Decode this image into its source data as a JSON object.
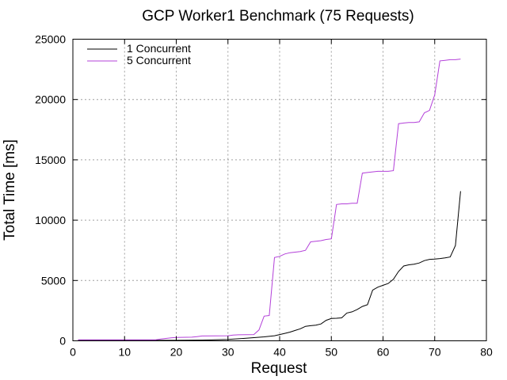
{
  "chart_data": {
    "type": "line",
    "title": "GCP Worker1 Benchmark (75 Requests)",
    "xlabel": "Request",
    "ylabel": "Total Time [ms]",
    "xlim": [
      0,
      80
    ],
    "ylim": [
      0,
      25000
    ],
    "xticks": [
      0,
      10,
      20,
      30,
      40,
      50,
      60,
      70,
      80
    ],
    "yticks": [
      0,
      5000,
      10000,
      15000,
      20000,
      25000
    ],
    "grid": true,
    "legend_position": "top-left",
    "series": [
      {
        "name": "1 Concurrent",
        "color": "#000000",
        "points": [
          [
            1,
            40
          ],
          [
            10,
            40
          ],
          [
            20,
            40
          ],
          [
            25,
            60
          ],
          [
            30,
            120
          ],
          [
            33,
            200
          ],
          [
            35,
            260
          ],
          [
            37,
            330
          ],
          [
            39,
            420
          ],
          [
            40,
            520
          ],
          [
            41,
            620
          ],
          [
            42,
            720
          ],
          [
            43,
            860
          ],
          [
            44,
            1000
          ],
          [
            45,
            1200
          ],
          [
            46,
            1250
          ],
          [
            47,
            1300
          ],
          [
            48,
            1400
          ],
          [
            49,
            1700
          ],
          [
            50,
            1850
          ],
          [
            51,
            1870
          ],
          [
            52,
            1900
          ],
          [
            53,
            2300
          ],
          [
            54,
            2400
          ],
          [
            55,
            2600
          ],
          [
            56,
            2850
          ],
          [
            57,
            3000
          ],
          [
            58,
            4200
          ],
          [
            59,
            4450
          ],
          [
            60,
            4600
          ],
          [
            61,
            4750
          ],
          [
            62,
            5100
          ],
          [
            63,
            5750
          ],
          [
            64,
            6200
          ],
          [
            65,
            6300
          ],
          [
            66,
            6350
          ],
          [
            67,
            6450
          ],
          [
            68,
            6650
          ],
          [
            69,
            6750
          ],
          [
            70,
            6780
          ],
          [
            71,
            6820
          ],
          [
            72,
            6870
          ],
          [
            73,
            6950
          ],
          [
            74,
            7900
          ],
          [
            75,
            12400
          ]
        ]
      },
      {
        "name": "5 Concurrent",
        "color": "#b340d9",
        "points": [
          [
            1,
            80
          ],
          [
            16,
            80
          ],
          [
            17,
            150
          ],
          [
            18,
            200
          ],
          [
            19,
            250
          ],
          [
            20,
            280
          ],
          [
            23,
            300
          ],
          [
            24,
            350
          ],
          [
            25,
            400
          ],
          [
            30,
            420
          ],
          [
            31,
            480
          ],
          [
            32,
            500
          ],
          [
            35,
            520
          ],
          [
            36,
            900
          ],
          [
            37,
            2050
          ],
          [
            38,
            2100
          ],
          [
            39,
            6900
          ],
          [
            40,
            7000
          ],
          [
            41,
            7200
          ],
          [
            42,
            7300
          ],
          [
            43,
            7350
          ],
          [
            44,
            7400
          ],
          [
            45,
            7500
          ],
          [
            46,
            8200
          ],
          [
            47,
            8250
          ],
          [
            48,
            8300
          ],
          [
            49,
            8400
          ],
          [
            50,
            8450
          ],
          [
            51,
            11300
          ],
          [
            52,
            11350
          ],
          [
            53,
            11350
          ],
          [
            54,
            11400
          ],
          [
            55,
            11400
          ],
          [
            56,
            13900
          ],
          [
            57,
            13950
          ],
          [
            58,
            14000
          ],
          [
            59,
            14050
          ],
          [
            60,
            14050
          ],
          [
            61,
            14050
          ],
          [
            62,
            14100
          ],
          [
            63,
            18000
          ],
          [
            64,
            18050
          ],
          [
            65,
            18100
          ],
          [
            66,
            18100
          ],
          [
            67,
            18150
          ],
          [
            68,
            18900
          ],
          [
            69,
            19100
          ],
          [
            70,
            20400
          ],
          [
            71,
            23200
          ],
          [
            72,
            23250
          ],
          [
            73,
            23300
          ],
          [
            74,
            23300
          ],
          [
            75,
            23350
          ]
        ]
      }
    ]
  }
}
